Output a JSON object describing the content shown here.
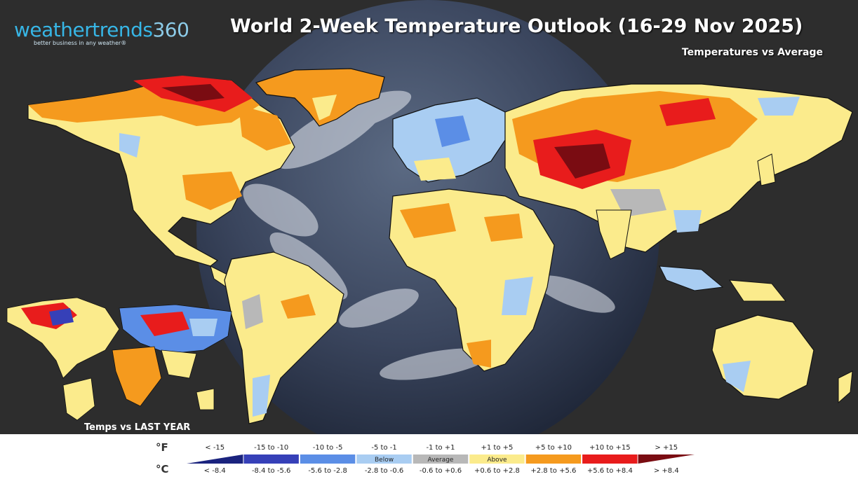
{
  "logo": {
    "brand_main": "weathertrends",
    "brand_num": "360",
    "tagline": "better business in any weather®"
  },
  "title": "World 2-Week Temperature Outlook (16-29 Nov 2025)",
  "subtitle": "Temperatures vs Average",
  "inset_label": "Temps vs LAST YEAR",
  "legend": {
    "unit_f": "°F",
    "unit_c": "°C",
    "bins": [
      {
        "f": "< -15",
        "c": "< -8.4",
        "color": "#1a237e",
        "tag": ""
      },
      {
        "f": "-15 to -10",
        "c": "-8.4 to -5.6",
        "color": "#3640b8",
        "tag": ""
      },
      {
        "f": "-10 to -5",
        "c": "-5.6 to -2.8",
        "color": "#5b8ee6",
        "tag": ""
      },
      {
        "f": "-5 to -1",
        "c": "-2.8 to -0.6",
        "color": "#a9cdf2",
        "tag": "Below"
      },
      {
        "f": "-1 to +1",
        "c": "-0.6 to +0.6",
        "color": "#b8b8b8",
        "tag": "Average"
      },
      {
        "f": "+1 to +5",
        "c": "+0.6 to +2.8",
        "color": "#fbeb8c",
        "tag": "Above"
      },
      {
        "f": "+5 to +10",
        "c": "+2.8 to +5.6",
        "color": "#f59a1e",
        "tag": ""
      },
      {
        "f": "+10 to +15",
        "c": "+5.6 to +8.4",
        "color": "#e81c1c",
        "tag": ""
      },
      {
        "f": "> +15",
        "c": "> +8.4",
        "color": "#7a0c12",
        "tag": ""
      }
    ]
  },
  "colors": {
    "background": "#2b2b2b",
    "globe_ocean": "#3e4a63",
    "land_above": "#fbeb8c",
    "land_warm": "#f59a1e",
    "land_hot": "#e81c1c",
    "land_extreme": "#7a0c12",
    "land_below": "#a9cdf2",
    "land_average": "#b8b8b8",
    "land_cold": "#5b8ee6",
    "land_very_cold": "#3640b8"
  }
}
